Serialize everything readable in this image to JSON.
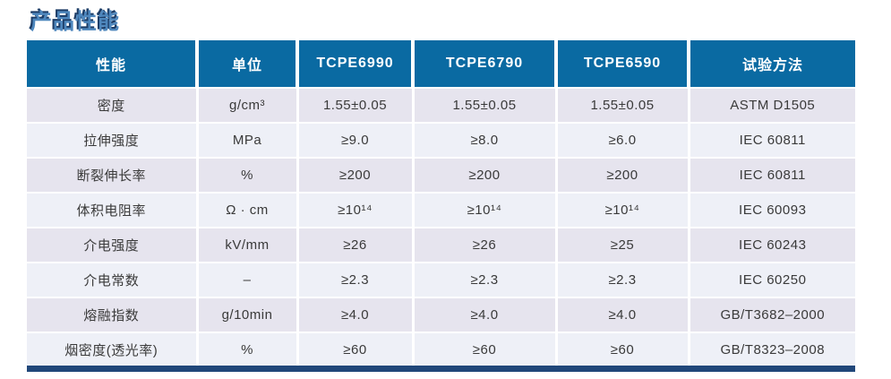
{
  "page": {
    "title": "产品性能"
  },
  "colors": {
    "title_blue": "#4e87bd",
    "title_shadow": "#1c3c66",
    "header_bg": "#0a6aa2",
    "row_odd": "#e6e4ee",
    "row_even": "#eef0f7",
    "footer_bar": "#20477a"
  },
  "table": {
    "columns": [
      "性能",
      "单位",
      "TCPE6990",
      "TCPE6790",
      "TCPE6590",
      "试验方法"
    ],
    "rows": [
      [
        "密度",
        "g/cm³",
        "1.55±0.05",
        "1.55±0.05",
        "1.55±0.05",
        "ASTM D1505"
      ],
      [
        "拉伸强度",
        "MPa",
        "≥9.0",
        "≥8.0",
        "≥6.0",
        "IEC 60811"
      ],
      [
        "断裂伸长率",
        "%",
        "≥200",
        "≥200",
        "≥200",
        "IEC 60811"
      ],
      [
        "体积电阻率",
        "Ω · cm",
        "≥10¹⁴",
        "≥10¹⁴",
        "≥10¹⁴",
        "IEC 60093"
      ],
      [
        "介电强度",
        "kV/mm",
        "≥26",
        "≥26",
        "≥25",
        "IEC 60243"
      ],
      [
        "介电常数",
        "–",
        "≥2.3",
        "≥2.3",
        "≥2.3",
        "IEC 60250"
      ],
      [
        "熔融指数",
        "g/10min",
        "≥4.0",
        "≥4.0",
        "≥4.0",
        "GB/T3682–2000"
      ],
      [
        "烟密度(透光率)",
        "%",
        "≥60",
        "≥60",
        "≥60",
        "GB/T8323–2008"
      ]
    ]
  }
}
